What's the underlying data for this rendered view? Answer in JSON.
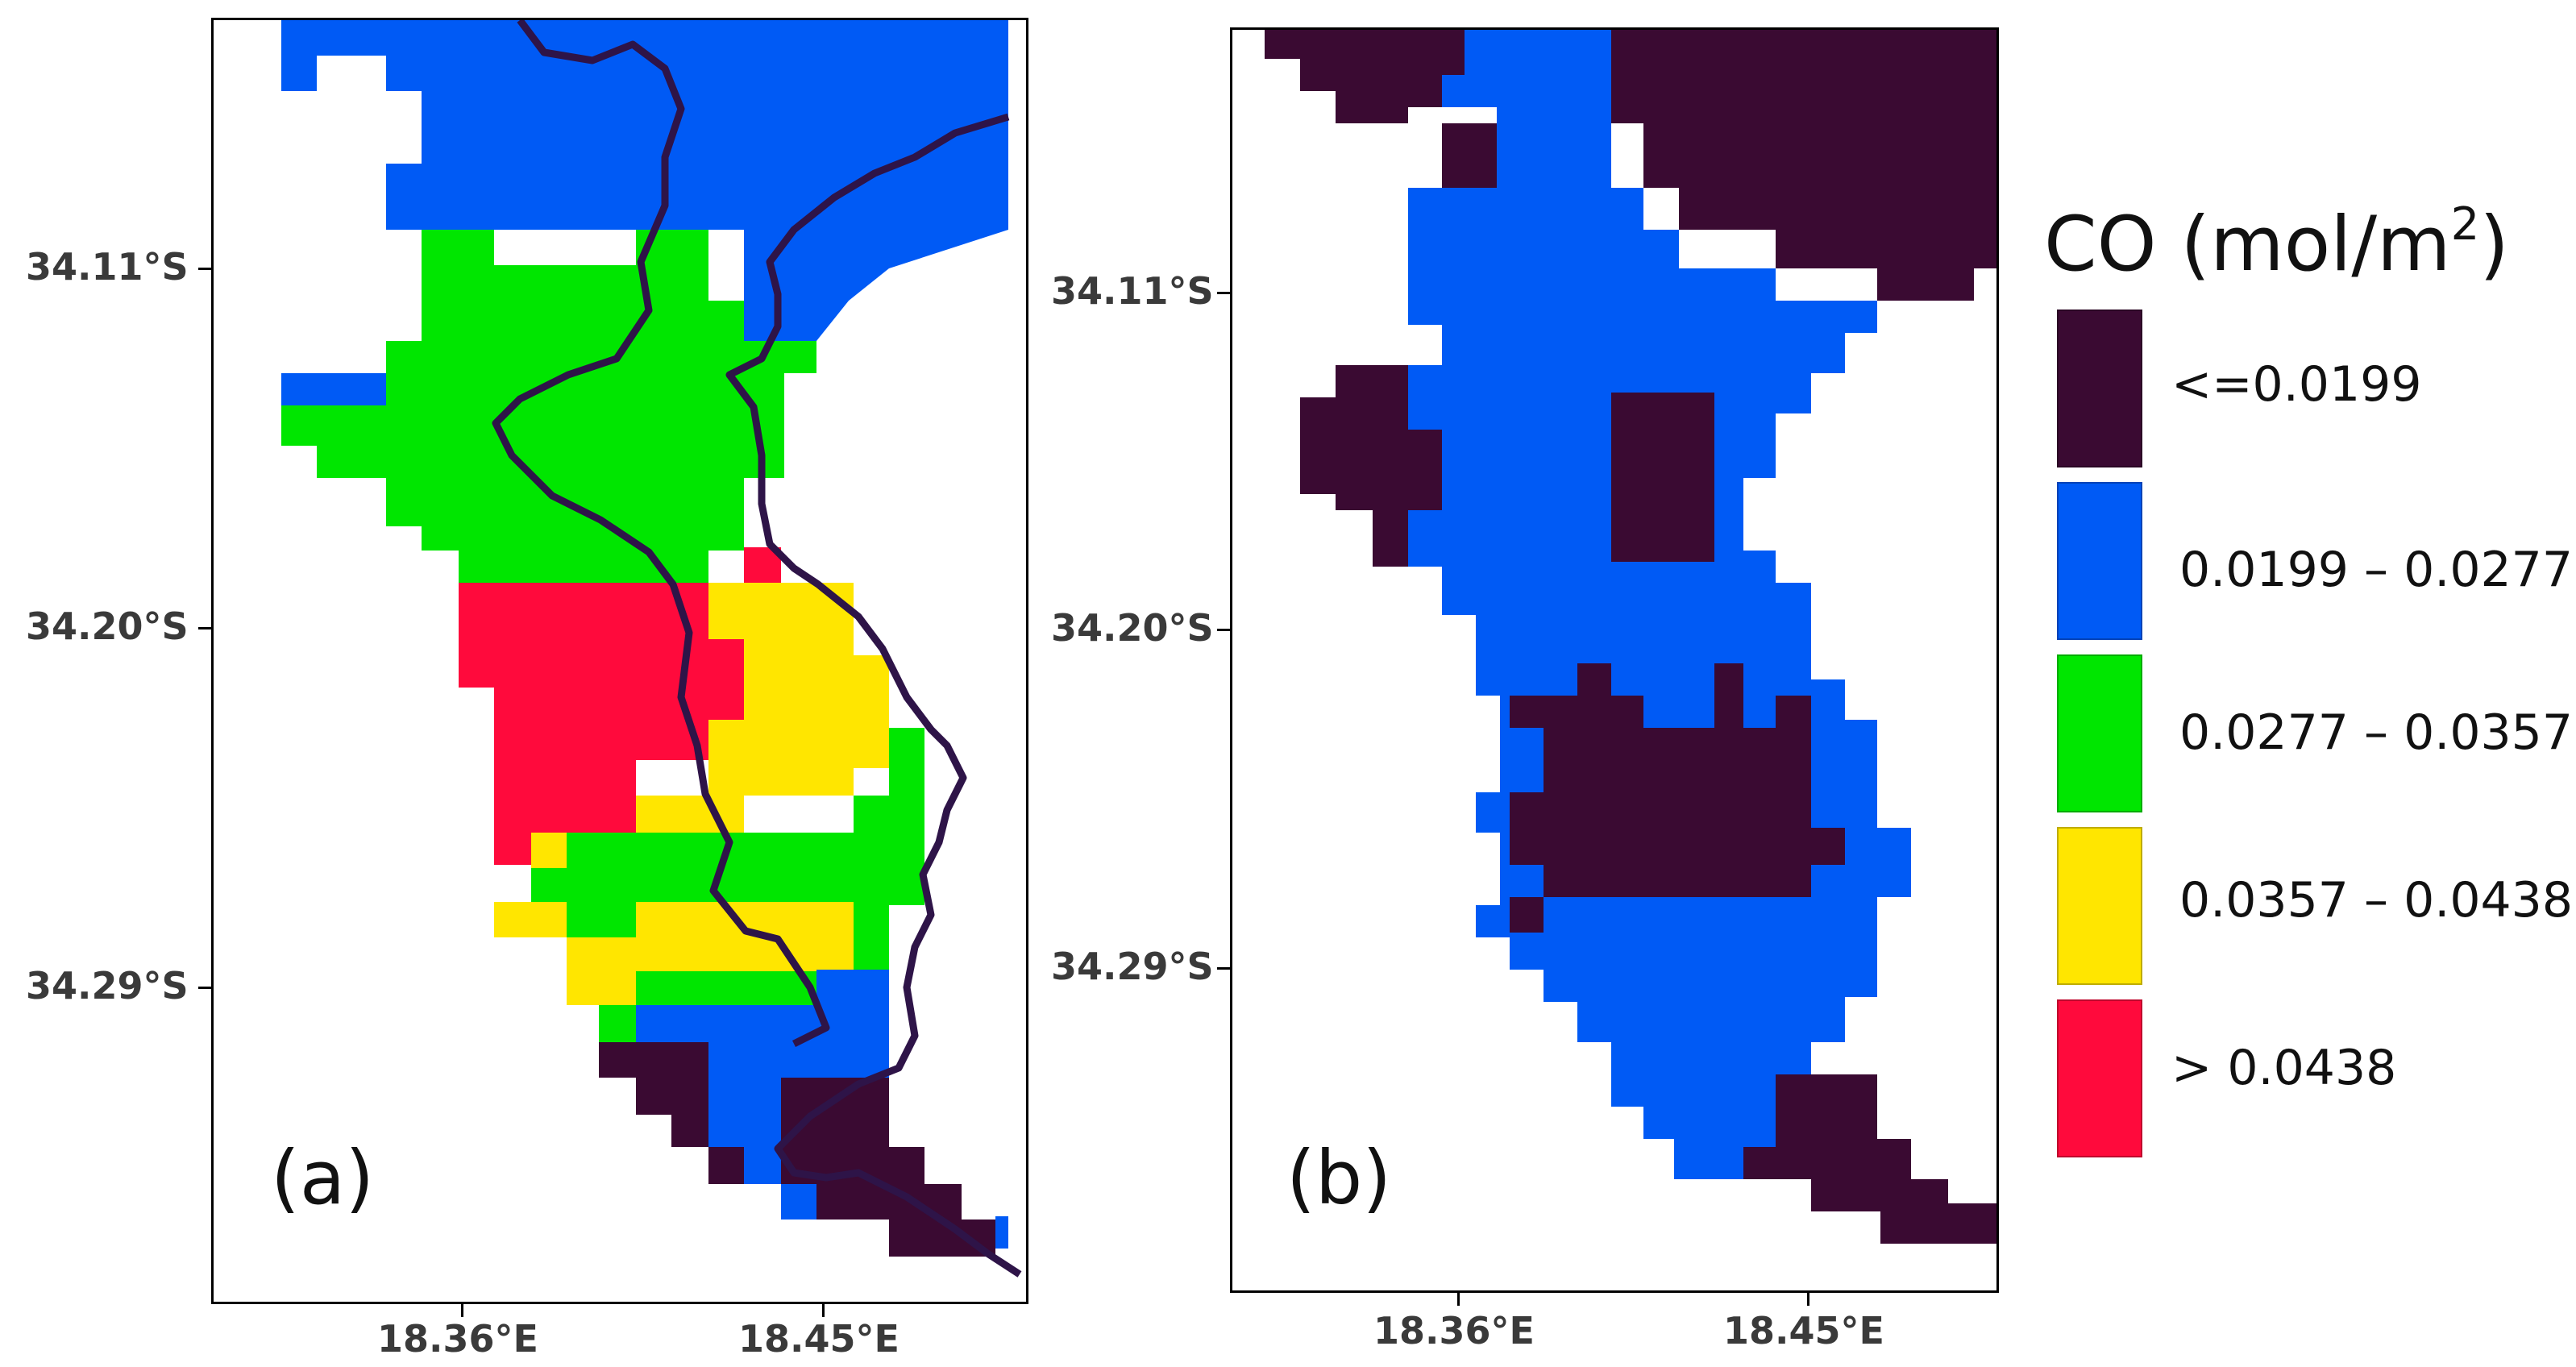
{
  "colors": {
    "class_1": "#3a0a32",
    "class_2": "#005af5",
    "class_3": "#00e600",
    "class_4": "#ffe600",
    "class_5": "#ff0a3c",
    "coastline": "#2e1448",
    "background": "#ffffff"
  },
  "legend": {
    "title": "CO (mol/m",
    "title_sup": "2",
    "title_close": ")",
    "items": [
      {
        "key": "class_1",
        "label": "<=0.0199"
      },
      {
        "key": "class_2",
        "label": "0.0199 – 0.0277"
      },
      {
        "key": "class_3",
        "label": "0.0277 – 0.0357"
      },
      {
        "key": "class_4",
        "label": "0.0357 – 0.0438"
      },
      {
        "key": "class_5",
        "label": "> 0.0438"
      }
    ]
  },
  "panels": [
    {
      "id": "a",
      "label": "(a)",
      "lat_ticks": [
        "34.11°S",
        "34.20°S",
        "34.29°S"
      ],
      "lon_ticks": [
        "18.36°E",
        "18.45°E"
      ]
    },
    {
      "id": "b",
      "label": "(b)",
      "lat_ticks": [
        "34.11°S",
        "34.20°S",
        "34.29°S"
      ],
      "lon_ticks": [
        "18.36°E",
        "18.45°E"
      ]
    }
  ]
}
